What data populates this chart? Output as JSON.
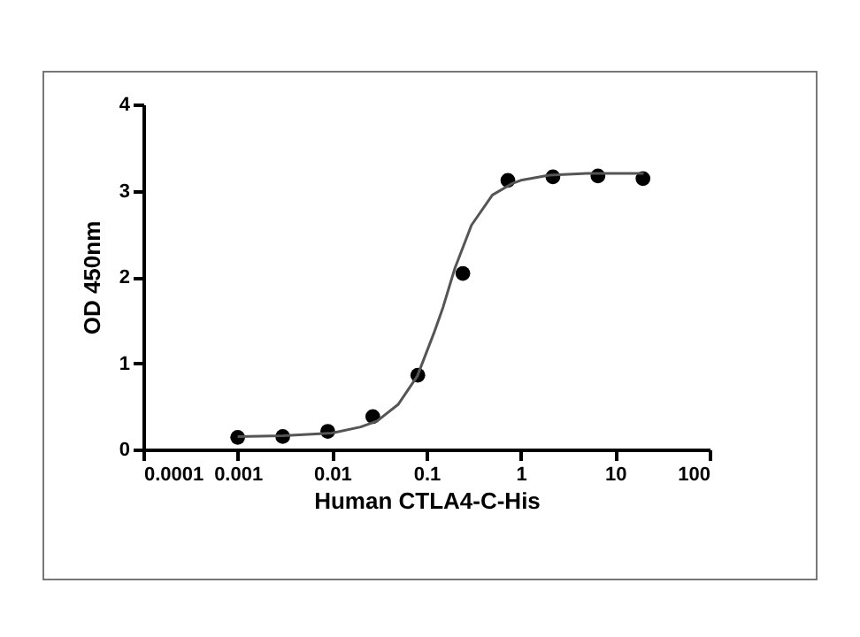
{
  "chart_data": {
    "type": "scatter",
    "xlabel": "Human CTLA4-C-His",
    "ylabel": "OD 450nm",
    "x": [
      0.001,
      0.003,
      0.009,
      0.027,
      0.081,
      0.243,
      0.729,
      2.187,
      6.561,
      19.683
    ],
    "series": [
      {
        "color": "#000000",
        "marker": "circle",
        "values": [
          0.14,
          0.15,
          0.21,
          0.38,
          0.86,
          2.04,
          3.12,
          3.16,
          3.17,
          3.14
        ]
      },
      {
        "type": "line",
        "color": "#555555",
        "marker": "none",
        "x": [
          0.001,
          0.003,
          0.01,
          0.02,
          0.03,
          0.05,
          0.08,
          0.12,
          0.15,
          0.2,
          0.3,
          0.5,
          0.8,
          1,
          2,
          5,
          20
        ],
        "values": [
          0.15,
          0.16,
          0.19,
          0.26,
          0.33,
          0.52,
          0.85,
          1.35,
          1.65,
          2.1,
          2.6,
          2.95,
          3.08,
          3.12,
          3.18,
          3.2,
          3.2
        ]
      }
    ],
    "log": "x",
    "grid": false,
    "xlim": [
      0.0001,
      100
    ],
    "xticks": [
      0.0001,
      0.001,
      0.01,
      0.1,
      1,
      10,
      100
    ],
    "ylim": [
      0,
      4
    ],
    "yticks": [
      0,
      1,
      2,
      3,
      4
    ]
  }
}
